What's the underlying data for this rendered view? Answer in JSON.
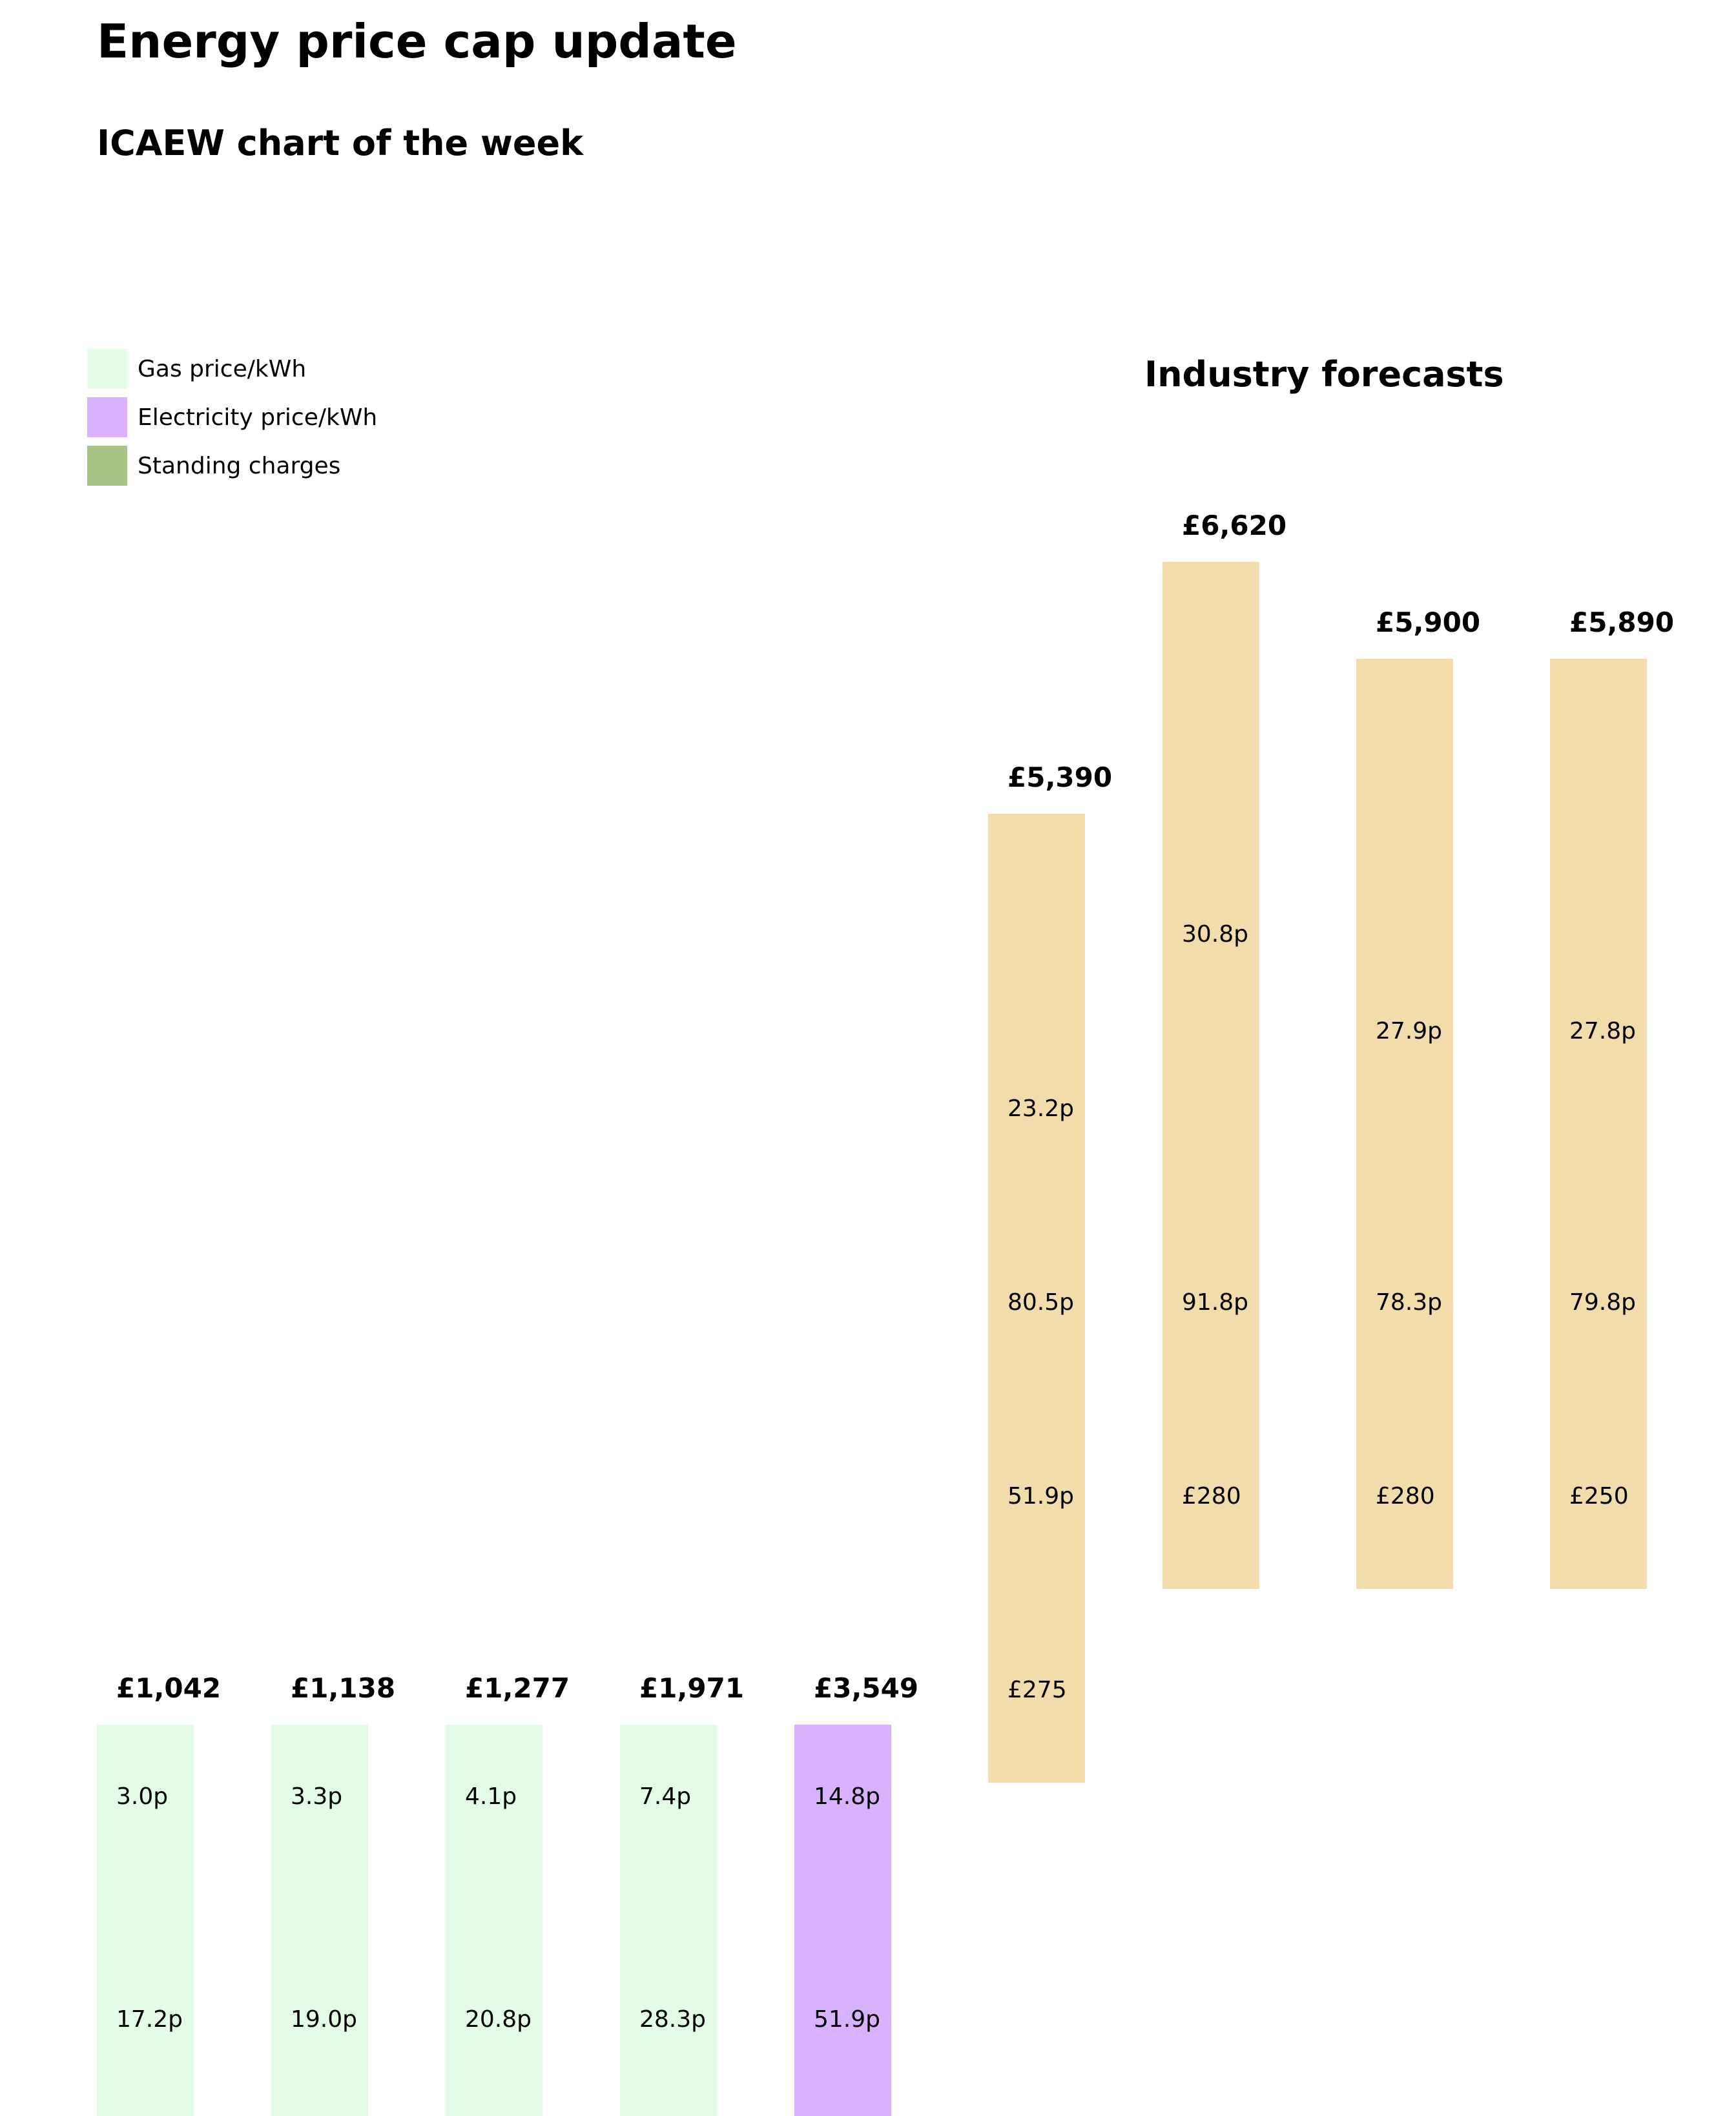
{
  "title": "Energy price cap update",
  "subtitle": "ICAEW chart of the week",
  "legend": [
    {
      "label": "Gas price/kWh",
      "color": "#e3fce5"
    },
    {
      "label": "Electricity price/kWh",
      "color": "#d8b2fc"
    },
    {
      "label": "Standing charges",
      "color": "#a5c486"
    }
  ],
  "forecast_heading": "Industry forecasts",
  "colors": {
    "gas": "#e3fce5",
    "electricity": "#d8b2fc",
    "standing": "#a5c486",
    "forecast": "#f3dcab"
  },
  "chart_data": {
    "type": "bar",
    "value_unit": "£ per year",
    "bars": [
      {
        "total": 1042,
        "total_label": "£1,042",
        "group": "price cap",
        "color_key": "gas",
        "labels": [
          "3.0p",
          "17.2p"
        ]
      },
      {
        "total": 1138,
        "total_label": "£1,138",
        "group": "price cap",
        "color_key": "gas",
        "labels": [
          "3.3p",
          "19.0p"
        ]
      },
      {
        "total": 1277,
        "total_label": "£1,277",
        "group": "price cap",
        "color_key": "gas",
        "labels": [
          "4.1p",
          "20.8p"
        ]
      },
      {
        "total": 1971,
        "total_label": "£1,971",
        "group": "price cap",
        "color_key": "gas",
        "labels": [
          "7.4p",
          "28.3p"
        ]
      },
      {
        "total": 3549,
        "total_label": "£3,549",
        "group": "price cap",
        "color_key": "electricity",
        "labels": [
          "14.8p",
          "51.9p"
        ]
      },
      {
        "total": 5390,
        "total_label": "£5,390",
        "group": "industry forecast",
        "color_key": "forecast",
        "labels": [
          "23.2p",
          "80.5p",
          "51.9p",
          "£275"
        ]
      },
      {
        "total": 6620,
        "total_label": "£6,620",
        "group": "industry forecast",
        "color_key": "forecast",
        "labels": [
          "30.8p",
          "91.8p",
          "£280"
        ]
      },
      {
        "total": 5900,
        "total_label": "£5,900",
        "group": "industry forecast",
        "color_key": "forecast",
        "labels": [
          "27.9p",
          "78.3p",
          "£280"
        ]
      },
      {
        "total": 5890,
        "total_label": "£5,890",
        "group": "industry forecast",
        "color_key": "forecast",
        "labels": [
          "27.8p",
          "79.8p",
          "£250"
        ]
      }
    ]
  }
}
